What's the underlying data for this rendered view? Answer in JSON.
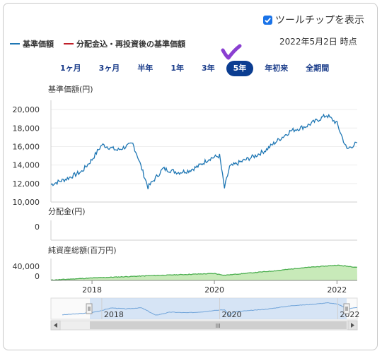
{
  "tooltip_toggle": {
    "label": "ツールチップを表示",
    "checked": true
  },
  "legend": [
    {
      "label": "基準価額",
      "color": "#1f77b4"
    },
    {
      "label": "分配金込・再投資後の基準価額",
      "color": "#c0202a"
    }
  ],
  "as_of": "2022年5月2日 時点",
  "range_buttons": [
    {
      "label": "1ヶ月",
      "active": false
    },
    {
      "label": "3ヶ月",
      "active": false
    },
    {
      "label": "半年",
      "active": false
    },
    {
      "label": "1年",
      "active": false
    },
    {
      "label": "3年",
      "active": false
    },
    {
      "label": "5年",
      "active": true
    },
    {
      "label": "年初来",
      "active": false
    },
    {
      "label": "全期間",
      "active": false
    }
  ],
  "accent_color": "#0b3d91",
  "chart_data": [
    {
      "type": "line",
      "title": "基準価額(円)",
      "ylim": [
        10000,
        21000
      ],
      "yticks": [
        "10,000",
        "12,000",
        "14,000",
        "16,000",
        "18,000",
        "20,000"
      ],
      "x": [
        "2017-05",
        "2017-08",
        "2017-11",
        "2018-01",
        "2018-03",
        "2018-06",
        "2018-09",
        "2018-10",
        "2018-12",
        "2019-03",
        "2019-06",
        "2019-08",
        "2019-10",
        "2019-12",
        "2020-02",
        "2020-03",
        "2020-04",
        "2020-06",
        "2020-09",
        "2020-11",
        "2021-01",
        "2021-04",
        "2021-07",
        "2021-09",
        "2021-11",
        "2022-01",
        "2022-03",
        "2022-05"
      ],
      "series": [
        {
          "values": [
            11900,
            12500,
            13300,
            14600,
            16200,
            15600,
            16300,
            14900,
            11600,
            13600,
            13200,
            13400,
            13900,
            14700,
            15000,
            11500,
            13800,
            14300,
            15000,
            15600,
            16500,
            17700,
            18200,
            18800,
            19400,
            18500,
            15700,
            16400
          ],
          "color": "#1f77b4"
        }
      ],
      "grid": true
    },
    {
      "type": "bar",
      "title": "分配金(円)",
      "yticks": [
        "0"
      ],
      "values": []
    },
    {
      "type": "area",
      "title": "純資産総額(百万円)",
      "yticks": [
        "40,000",
        "0"
      ],
      "x": [
        "2017-05",
        "2018-01",
        "2019-01",
        "2020-01",
        "2020-03",
        "2021-01",
        "2021-06",
        "2022-01",
        "2022-05"
      ],
      "series": [
        {
          "values": [
            1000,
            7000,
            14000,
            20000,
            15000,
            28000,
            36000,
            44000,
            38000
          ],
          "color": "#4caf50"
        }
      ],
      "xticks": [
        "2018",
        "2020",
        "2022"
      ]
    }
  ],
  "navigator": {
    "xticks": [
      "2018",
      "2020",
      "2022"
    ],
    "scrollbar_label": "III"
  }
}
